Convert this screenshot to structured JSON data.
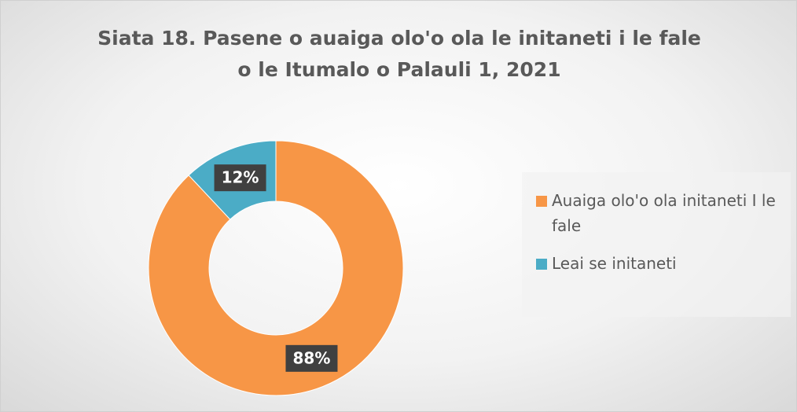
{
  "chart_data": {
    "type": "donut",
    "title": "Siata 18. Pasene o auaiga olo'o ola le initaneti i le fale o le Itumalo o Palauli 1, 2021",
    "categories": [
      "Auaiga olo'o ola initaneti I le fale",
      "Leai se initaneti"
    ],
    "values": [
      88,
      12
    ],
    "value_labels": [
      "88%",
      "12%"
    ],
    "colors": [
      "#f79646",
      "#4bacc6"
    ],
    "legend": "right"
  }
}
